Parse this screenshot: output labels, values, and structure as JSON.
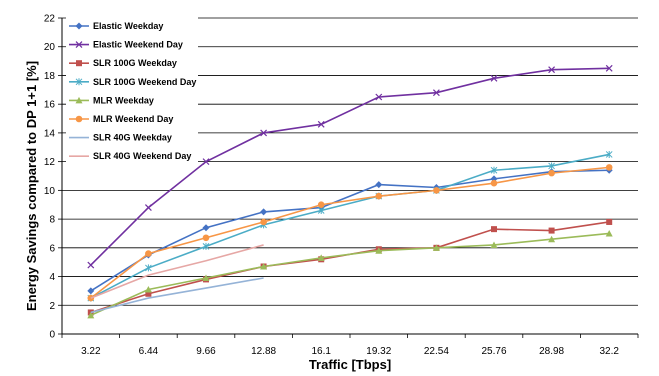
{
  "chart_data": {
    "type": "line",
    "title": "",
    "xlabel": "Traffic [Tbps]",
    "ylabel": "Energy Savings compared to DP 1+1 [%]",
    "categories": [
      "3.22",
      "6.44",
      "9.66",
      "12.88",
      "16.1",
      "19.32",
      "22.54",
      "25.76",
      "28.98",
      "32.2"
    ],
    "ylim": [
      0,
      22
    ],
    "yticks": [
      0,
      2,
      4,
      6,
      8,
      10,
      12,
      14,
      16,
      18,
      20,
      22
    ],
    "grid": "horizontal",
    "legend_position": "top-left",
    "series": [
      {
        "name": "Elastic Weekday",
        "color": "#4472c4",
        "marker": "diamond",
        "values": [
          3.0,
          5.5,
          7.4,
          8.5,
          8.8,
          10.4,
          10.2,
          10.8,
          11.3,
          11.4
        ]
      },
      {
        "name": "Elastic Weekend Day",
        "color": "#7030a0",
        "marker": "x",
        "values": [
          4.8,
          8.8,
          12.0,
          14.0,
          14.6,
          16.5,
          16.8,
          17.8,
          18.4,
          18.5
        ]
      },
      {
        "name": "SLR 100G Weekday",
        "color": "#c0504d",
        "marker": "square",
        "values": [
          1.5,
          2.8,
          3.8,
          4.7,
          5.2,
          5.9,
          6.0,
          7.3,
          7.2,
          7.8
        ]
      },
      {
        "name": "SLR 100G Weekend Day",
        "color": "#4bacc6",
        "marker": "star",
        "values": [
          2.5,
          4.6,
          6.1,
          7.6,
          8.6,
          9.6,
          10.0,
          11.4,
          11.7,
          12.5
        ]
      },
      {
        "name": "MLR Weekday",
        "color": "#9bbb59",
        "marker": "triangle",
        "values": [
          1.3,
          3.1,
          3.9,
          4.7,
          5.3,
          5.8,
          6.0,
          6.2,
          6.6,
          7.0
        ]
      },
      {
        "name": "MLR Weekend Day",
        "color": "#f79646",
        "marker": "circle",
        "values": [
          2.5,
          5.6,
          6.7,
          7.8,
          9.0,
          9.6,
          10.0,
          10.5,
          11.2,
          11.6
        ]
      },
      {
        "name": "SLR 40G Weekday",
        "color": "#95b3d7",
        "marker": "none",
        "values": [
          1.5,
          2.5,
          3.2,
          3.9,
          null,
          null,
          null,
          null,
          null,
          null
        ]
      },
      {
        "name": "SLR 40G Weekend Day",
        "color": "#e6a7a5",
        "marker": "none",
        "values": [
          2.5,
          4.1,
          5.1,
          6.2,
          null,
          null,
          null,
          null,
          null,
          null
        ]
      }
    ]
  }
}
